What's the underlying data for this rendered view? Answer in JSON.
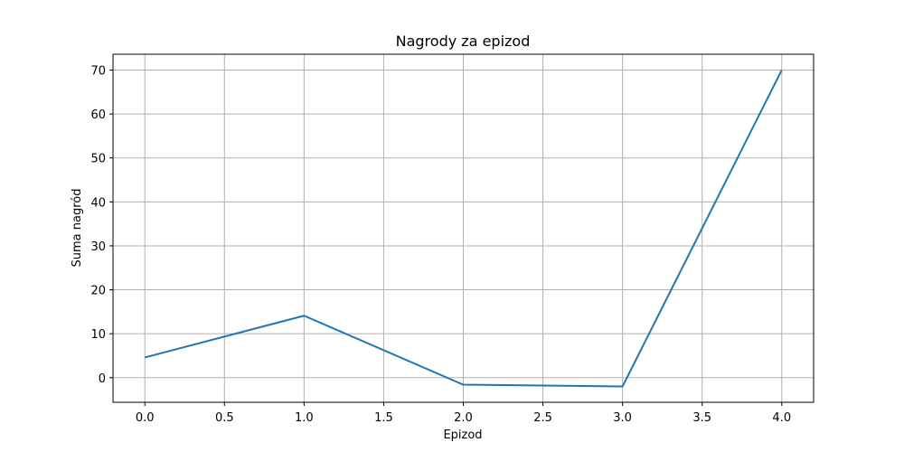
{
  "chart_data": {
    "type": "line",
    "title": "Nagrody za epizod",
    "xlabel": "Epizod",
    "ylabel": "Suma nagród",
    "x": [
      0,
      1,
      2,
      3,
      4
    ],
    "series": [
      {
        "values": [
          4.6,
          14.1,
          -1.6,
          -2.0,
          70.0
        ],
        "color": "#1f77b4"
      }
    ],
    "xlim": [
      -0.2,
      4.2
    ],
    "ylim": [
      -5.6,
      73.6
    ],
    "x_ticks": [
      0.0,
      0.5,
      1.0,
      1.5,
      2.0,
      2.5,
      3.0,
      3.5,
      4.0
    ],
    "x_tick_labels": [
      "0.0",
      "0.5",
      "1.0",
      "1.5",
      "2.0",
      "2.5",
      "3.0",
      "3.5",
      "4.0"
    ],
    "y_ticks": [
      0,
      10,
      20,
      30,
      40,
      50,
      60,
      70
    ],
    "y_tick_labels": [
      "0",
      "10",
      "20",
      "30",
      "40",
      "50",
      "60",
      "70"
    ],
    "grid": true,
    "legend": false
  }
}
